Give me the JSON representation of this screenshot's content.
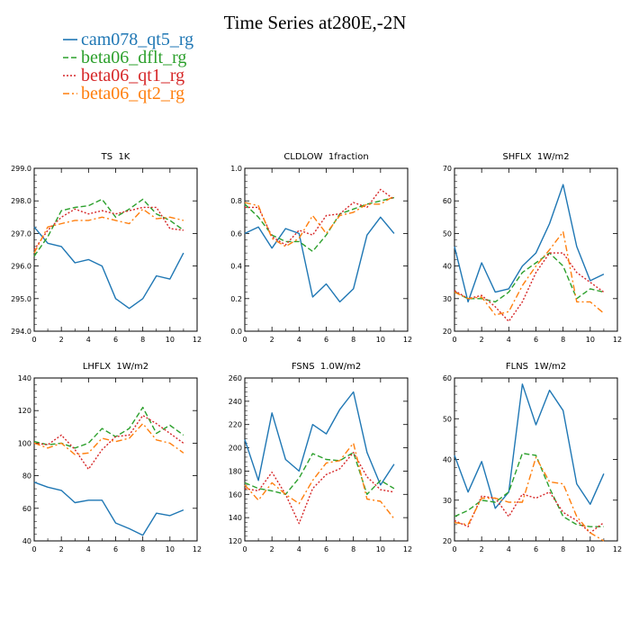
{
  "figure": {
    "title": "Time Series at280E,-2N",
    "legend": [
      {
        "name": "cam078_qt5_rg",
        "color": "#1f77b4",
        "dash": "solid"
      },
      {
        "name": "beta06_dflt_rg",
        "color": "#2ca02c",
        "dash": "dashed"
      },
      {
        "name": "beta06_qt1_rg",
        "color": "#d62728",
        "dash": "dotted"
      },
      {
        "name": "beta06_qt2_rg",
        "color": "#ff7f0e",
        "dash": "dashdot"
      }
    ]
  },
  "chart_data": [
    {
      "type": "line",
      "title": "TS  1K",
      "x": [
        0,
        1,
        2,
        3,
        4,
        5,
        6,
        7,
        8,
        9,
        10,
        11
      ],
      "xlim": [
        0,
        12
      ],
      "xticks": [
        0,
        2,
        4,
        6,
        8,
        10,
        12
      ],
      "ylim": [
        294.0,
        299.0
      ],
      "yticks": [
        294.0,
        295.0,
        296.0,
        297.0,
        298.0,
        299.0
      ],
      "ytick_labels": [
        "294.0",
        "295.0",
        "296.0",
        "297.0",
        "298.0",
        "299.0"
      ],
      "series": [
        {
          "name": "cam078_qt5_rg",
          "values": [
            297.2,
            296.7,
            296.6,
            296.1,
            296.2,
            296.0,
            295.0,
            294.7,
            295.0,
            295.7,
            295.6,
            296.4
          ]
        },
        {
          "name": "beta06_dflt_rg",
          "values": [
            296.3,
            296.9,
            297.7,
            297.8,
            297.85,
            298.05,
            297.5,
            297.75,
            298.05,
            297.6,
            297.4,
            297.1
          ]
        },
        {
          "name": "beta06_qt1_rg",
          "values": [
            296.5,
            297.1,
            297.5,
            297.75,
            297.6,
            297.7,
            297.6,
            297.7,
            297.8,
            297.8,
            297.15,
            297.1
          ]
        },
        {
          "name": "beta06_qt2_rg",
          "values": [
            296.4,
            297.2,
            297.3,
            297.4,
            297.4,
            297.5,
            297.4,
            297.3,
            297.75,
            297.45,
            297.5,
            297.4
          ]
        }
      ]
    },
    {
      "type": "line",
      "title": "CLDLOW  1fraction",
      "x": [
        0,
        1,
        2,
        3,
        4,
        5,
        6,
        7,
        8,
        9,
        10,
        11
      ],
      "xlim": [
        0,
        12
      ],
      "xticks": [
        0,
        2,
        4,
        6,
        8,
        10,
        12
      ],
      "ylim": [
        0.0,
        1.0
      ],
      "yticks": [
        0.0,
        0.2,
        0.4,
        0.6,
        0.8,
        1.0
      ],
      "ytick_labels": [
        "0.0",
        "0.2",
        "0.4",
        "0.6",
        "0.8",
        "1.0"
      ],
      "series": [
        {
          "name": "cam078_qt5_rg",
          "values": [
            0.6,
            0.64,
            0.51,
            0.63,
            0.6,
            0.21,
            0.29,
            0.18,
            0.26,
            0.59,
            0.7,
            0.6
          ]
        },
        {
          "name": "beta06_dflt_rg",
          "values": [
            0.78,
            0.7,
            0.59,
            0.55,
            0.55,
            0.49,
            0.59,
            0.72,
            0.75,
            0.78,
            0.8,
            0.82
          ]
        },
        {
          "name": "beta06_qt1_rg",
          "values": [
            0.76,
            0.76,
            0.58,
            0.53,
            0.62,
            0.59,
            0.71,
            0.72,
            0.79,
            0.76,
            0.87,
            0.81
          ]
        },
        {
          "name": "beta06_qt2_rg",
          "values": [
            0.79,
            0.77,
            0.57,
            0.52,
            0.57,
            0.71,
            0.6,
            0.71,
            0.73,
            0.78,
            0.78,
            0.83
          ]
        }
      ]
    },
    {
      "type": "line",
      "title": "SHFLX  1W/m2",
      "x": [
        0,
        1,
        2,
        3,
        4,
        5,
        6,
        7,
        8,
        9,
        10,
        11
      ],
      "xlim": [
        0,
        12
      ],
      "xticks": [
        0,
        2,
        4,
        6,
        8,
        10,
        12
      ],
      "ylim": [
        20,
        70
      ],
      "yticks": [
        20,
        30,
        40,
        50,
        60,
        70
      ],
      "ytick_labels": [
        "20",
        "30",
        "40",
        "50",
        "60",
        "70"
      ],
      "series": [
        {
          "name": "cam078_qt5_rg",
          "values": [
            46,
            29,
            41,
            32,
            33,
            40,
            44,
            53,
            65,
            46,
            35.5,
            37.5
          ]
        },
        {
          "name": "beta06_dflt_rg",
          "values": [
            32,
            30,
            30,
            29,
            32,
            38,
            41,
            44,
            40,
            30,
            33,
            32
          ]
        },
        {
          "name": "beta06_qt1_rg",
          "values": [
            32.5,
            30,
            31,
            27.5,
            23,
            29,
            38,
            44,
            44,
            38,
            35,
            32
          ]
        },
        {
          "name": "beta06_qt2_rg",
          "values": [
            32,
            30,
            30.5,
            25,
            26,
            34,
            40,
            45,
            50.5,
            29,
            29,
            25.5
          ]
        }
      ]
    },
    {
      "type": "line",
      "title": "LHFLX  1W/m2",
      "x": [
        0,
        1,
        2,
        3,
        4,
        5,
        6,
        7,
        8,
        9,
        10,
        11
      ],
      "xlim": [
        0,
        12
      ],
      "xticks": [
        0,
        2,
        4,
        6,
        8,
        10,
        12
      ],
      "ylim": [
        40,
        140
      ],
      "yticks": [
        40,
        60,
        80,
        100,
        120,
        140
      ],
      "ytick_labels": [
        "40",
        "60",
        "80",
        "100",
        "120",
        "140"
      ],
      "series": [
        {
          "name": "cam078_qt5_rg",
          "values": [
            76,
            73,
            71,
            63.5,
            65,
            65,
            51,
            47.5,
            43.5,
            57,
            55.5,
            59
          ]
        },
        {
          "name": "beta06_dflt_rg",
          "values": [
            101,
            99,
            100,
            97,
            100,
            109,
            104,
            109,
            122,
            106,
            111,
            105
          ]
        },
        {
          "name": "beta06_qt1_rg",
          "values": [
            100,
            99,
            105,
            96,
            84,
            96,
            104,
            105,
            117,
            112,
            106,
            100
          ]
        },
        {
          "name": "beta06_qt2_rg",
          "values": [
            100,
            97,
            100,
            93,
            94,
            103,
            101,
            103,
            112,
            102,
            100,
            94
          ]
        }
      ]
    },
    {
      "type": "line",
      "title": "FSNS  1.0W/m2",
      "x": [
        0,
        1,
        2,
        3,
        4,
        5,
        6,
        7,
        8,
        9,
        10,
        11
      ],
      "xlim": [
        0,
        12
      ],
      "xticks": [
        0,
        2,
        4,
        6,
        8,
        10,
        12
      ],
      "ylim": [
        120,
        260
      ],
      "yticks": [
        120,
        140,
        160,
        180,
        200,
        220,
        240,
        260
      ],
      "ytick_labels": [
        "120",
        "140",
        "160",
        "180",
        "200",
        "220",
        "240",
        "260"
      ],
      "series": [
        {
          "name": "cam078_qt5_rg",
          "values": [
            207,
            172,
            230,
            190,
            180,
            220,
            212,
            233,
            248,
            196,
            168,
            186
          ]
        },
        {
          "name": "beta06_dflt_rg",
          "values": [
            170,
            165,
            163,
            160,
            174,
            195,
            190,
            189,
            196,
            160,
            172,
            165
          ]
        },
        {
          "name": "beta06_qt1_rg",
          "values": [
            165,
            163,
            179,
            160,
            135,
            165,
            177,
            182,
            196,
            175,
            164,
            162
          ]
        },
        {
          "name": "beta06_qt2_rg",
          "values": [
            168,
            155,
            170,
            160,
            152,
            172,
            187,
            189,
            204,
            156,
            154,
            139
          ]
        }
      ]
    },
    {
      "type": "line",
      "title": "FLNS  1W/m2",
      "x": [
        0,
        1,
        2,
        3,
        4,
        5,
        6,
        7,
        8,
        9,
        10,
        11
      ],
      "xlim": [
        0,
        12
      ],
      "xticks": [
        0,
        2,
        4,
        6,
        8,
        10,
        12
      ],
      "ylim": [
        20,
        60
      ],
      "yticks": [
        20,
        30,
        40,
        50,
        60
      ],
      "ytick_labels": [
        "20",
        "30",
        "40",
        "50",
        "60"
      ],
      "series": [
        {
          "name": "cam078_qt5_rg",
          "values": [
            41,
            32,
            39.5,
            28,
            32,
            58.5,
            48.5,
            57,
            52,
            34,
            29,
            36.5
          ]
        },
        {
          "name": "beta06_dflt_rg",
          "values": [
            26,
            27.5,
            30,
            29.5,
            32,
            41.5,
            41,
            33,
            26,
            24,
            23.5,
            23.5
          ]
        },
        {
          "name": "beta06_qt1_rg",
          "values": [
            25,
            23.5,
            31,
            30.5,
            26,
            31.5,
            30.5,
            32,
            27,
            25,
            22,
            24.5
          ]
        },
        {
          "name": "beta06_qt2_rg",
          "values": [
            24.5,
            24,
            30.5,
            30.5,
            29.5,
            29.5,
            40.5,
            34.5,
            34,
            26,
            22,
            20
          ]
        }
      ]
    }
  ]
}
